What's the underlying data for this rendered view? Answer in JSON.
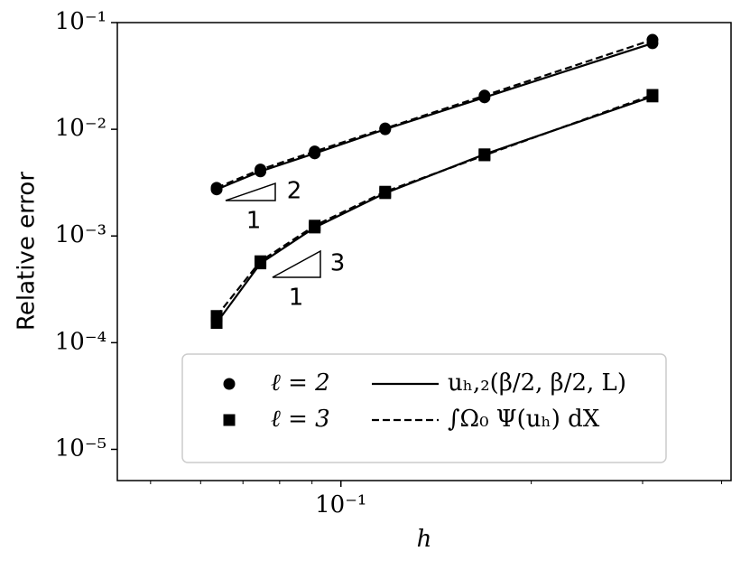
{
  "chart_data": {
    "type": "line",
    "xlabel": "h",
    "ylabel": "Relative error",
    "log_x": true,
    "log_y": true,
    "x": [
      0.0636,
      0.0746,
      0.0909,
      0.1175,
      0.1687,
      0.311
    ],
    "xlim": [
      0.0443,
      0.414
    ],
    "ylim": [
      5.1e-06,
      0.1
    ],
    "xticks": [
      {
        "value": 0.1,
        "label": "10⁻¹"
      }
    ],
    "xminorticks": [
      0.05,
      0.06,
      0.07,
      0.08,
      0.09,
      0.2,
      0.3,
      0.4
    ],
    "yticks": [
      {
        "value": 0.1,
        "label": "10⁻¹"
      },
      {
        "value": 0.01,
        "label": "10⁻²"
      },
      {
        "value": 0.001,
        "label": "10⁻³"
      },
      {
        "value": 0.0001,
        "label": "10⁻⁴"
      },
      {
        "value": 1e-05,
        "label": "10⁻⁵"
      }
    ],
    "series": [
      {
        "marker": "circle",
        "linestyle": "solid",
        "color": "#000000",
        "values": [
          0.00273,
          0.00403,
          0.00594,
          0.01,
          0.0199,
          0.064
        ]
      },
      {
        "marker": "circle",
        "linestyle": "dashed",
        "color": "#000000",
        "values": [
          0.00283,
          0.0042,
          0.0062,
          0.0102,
          0.0207,
          0.069
        ]
      },
      {
        "marker": "square",
        "linestyle": "solid",
        "color": "#000000",
        "values": [
          0.000153,
          0.000553,
          0.0012,
          0.00252,
          0.00583,
          0.0203
        ]
      },
      {
        "marker": "square",
        "linestyle": "dashed",
        "color": "#000000",
        "values": [
          0.000178,
          0.00058,
          0.00125,
          0.0026,
          0.0057,
          0.021
        ]
      }
    ],
    "legend": {
      "markers": [
        {
          "label": "ℓ = 2",
          "marker": "circle"
        },
        {
          "label": "ℓ = 3",
          "marker": "square"
        }
      ],
      "lines": [
        {
          "label": "uₕ,₂(β/2, β/2, L)",
          "linestyle": "solid"
        },
        {
          "label": "∫Ω₀ Ψ(uₕ) dX",
          "linestyle": "dashed"
        }
      ]
    },
    "annotations": [
      "2",
      "1",
      "3",
      "1"
    ]
  }
}
